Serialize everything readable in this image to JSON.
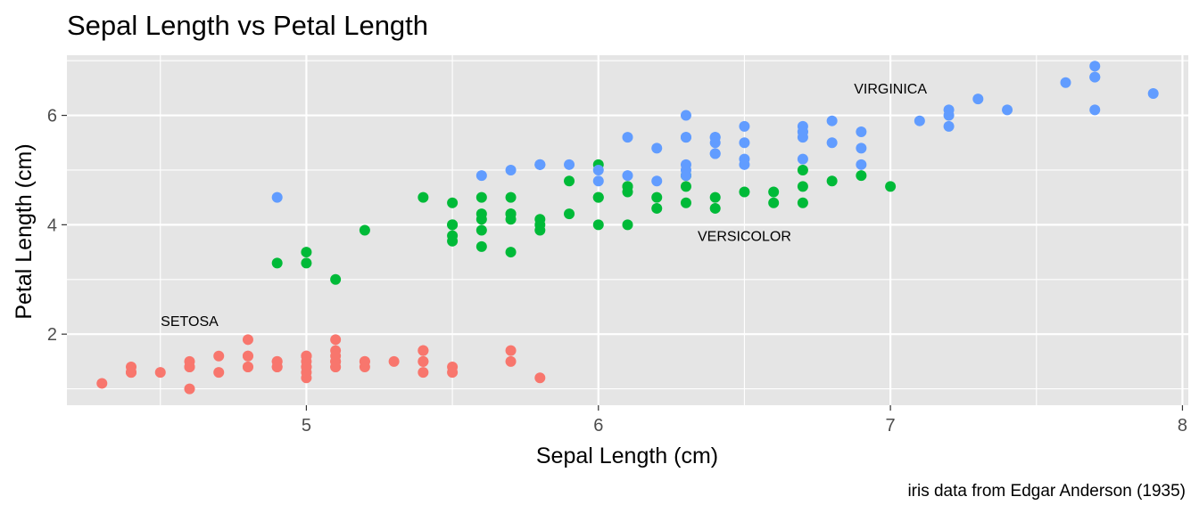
{
  "chart_data": {
    "type": "scatter",
    "title": "Sepal Length vs Petal Length",
    "xlabel": "Sepal Length (cm)",
    "ylabel": "Petal Length (cm)",
    "caption": "iris data from Edgar Anderson (1935)",
    "xlim": [
      4.18,
      8.02
    ],
    "ylim": [
      0.7,
      7.1
    ],
    "x_ticks": [
      5,
      6,
      7,
      8
    ],
    "x_tick_labels": [
      "5",
      "6",
      "7",
      "8"
    ],
    "y_ticks": [
      2,
      4,
      6
    ],
    "y_tick_labels": [
      "2",
      "4",
      "6"
    ],
    "x_minor": [
      4.5,
      5.5,
      6.5,
      7.5
    ],
    "y_minor": [
      1,
      3,
      5,
      7
    ],
    "grid": true,
    "legend": "none",
    "colors": {
      "panel_background": "#e5e5e5",
      "grid": "#ffffff"
    },
    "annotations": [
      {
        "label": "SETOSA",
        "x": 4.6,
        "y": 2.25
      },
      {
        "label": "VERSICOLOR",
        "x": 6.5,
        "y": 3.8
      },
      {
        "label": "VIRGINICA",
        "x": 7.0,
        "y": 6.5
      }
    ],
    "series": [
      {
        "color": "#f8766d",
        "points": [
          [
            5.1,
            1.4
          ],
          [
            4.9,
            1.4
          ],
          [
            4.7,
            1.3
          ],
          [
            4.6,
            1.5
          ],
          [
            5.0,
            1.4
          ],
          [
            5.4,
            1.7
          ],
          [
            4.6,
            1.4
          ],
          [
            5.0,
            1.5
          ],
          [
            4.4,
            1.4
          ],
          [
            4.9,
            1.5
          ],
          [
            5.4,
            1.5
          ],
          [
            4.8,
            1.6
          ],
          [
            4.8,
            1.4
          ],
          [
            4.3,
            1.1
          ],
          [
            5.8,
            1.2
          ],
          [
            5.7,
            1.5
          ],
          [
            5.4,
            1.3
          ],
          [
            5.1,
            1.4
          ],
          [
            5.7,
            1.7
          ],
          [
            5.1,
            1.5
          ],
          [
            5.4,
            1.7
          ],
          [
            5.1,
            1.5
          ],
          [
            4.6,
            1.0
          ],
          [
            5.1,
            1.7
          ],
          [
            4.8,
            1.9
          ],
          [
            5.0,
            1.6
          ],
          [
            5.0,
            1.6
          ],
          [
            5.2,
            1.5
          ],
          [
            5.2,
            1.4
          ],
          [
            4.7,
            1.6
          ],
          [
            4.8,
            1.6
          ],
          [
            5.4,
            1.5
          ],
          [
            5.2,
            1.5
          ],
          [
            5.5,
            1.4
          ],
          [
            4.9,
            1.5
          ],
          [
            5.0,
            1.2
          ],
          [
            5.5,
            1.3
          ],
          [
            4.9,
            1.4
          ],
          [
            4.4,
            1.3
          ],
          [
            5.1,
            1.5
          ],
          [
            5.0,
            1.3
          ],
          [
            4.5,
            1.3
          ],
          [
            4.4,
            1.3
          ],
          [
            5.0,
            1.6
          ],
          [
            5.1,
            1.9
          ],
          [
            4.8,
            1.4
          ],
          [
            5.1,
            1.6
          ],
          [
            4.6,
            1.4
          ],
          [
            5.3,
            1.5
          ],
          [
            5.0,
            1.4
          ]
        ]
      },
      {
        "color": "#00ba38",
        "points": [
          [
            7.0,
            4.7
          ],
          [
            6.4,
            4.5
          ],
          [
            6.9,
            4.9
          ],
          [
            5.5,
            4.0
          ],
          [
            6.5,
            4.6
          ],
          [
            5.7,
            4.5
          ],
          [
            6.3,
            4.7
          ],
          [
            4.9,
            3.3
          ],
          [
            6.6,
            4.6
          ],
          [
            5.2,
            3.9
          ],
          [
            5.0,
            3.5
          ],
          [
            5.9,
            4.2
          ],
          [
            6.0,
            4.0
          ],
          [
            6.1,
            4.7
          ],
          [
            5.6,
            3.6
          ],
          [
            6.7,
            4.4
          ],
          [
            5.6,
            4.5
          ],
          [
            5.8,
            4.1
          ],
          [
            6.2,
            4.5
          ],
          [
            5.6,
            3.9
          ],
          [
            5.9,
            4.8
          ],
          [
            6.1,
            4.0
          ],
          [
            6.3,
            4.9
          ],
          [
            6.1,
            4.7
          ],
          [
            6.4,
            4.3
          ],
          [
            6.6,
            4.4
          ],
          [
            6.8,
            4.8
          ],
          [
            6.7,
            5.0
          ],
          [
            6.0,
            4.5
          ],
          [
            5.7,
            3.5
          ],
          [
            5.5,
            3.8
          ],
          [
            5.5,
            3.7
          ],
          [
            5.8,
            3.9
          ],
          [
            6.0,
            5.1
          ],
          [
            5.4,
            4.5
          ],
          [
            6.0,
            4.5
          ],
          [
            6.7,
            4.7
          ],
          [
            6.3,
            4.4
          ],
          [
            5.6,
            4.1
          ],
          [
            5.5,
            4.0
          ],
          [
            5.5,
            4.4
          ],
          [
            6.1,
            4.6
          ],
          [
            5.8,
            4.0
          ],
          [
            5.0,
            3.3
          ],
          [
            5.6,
            4.2
          ],
          [
            5.7,
            4.2
          ],
          [
            5.7,
            4.2
          ],
          [
            6.2,
            4.3
          ],
          [
            5.1,
            3.0
          ],
          [
            5.7,
            4.1
          ]
        ]
      },
      {
        "color": "#619cff",
        "points": [
          [
            6.3,
            6.0
          ],
          [
            5.8,
            5.1
          ],
          [
            7.1,
            5.9
          ],
          [
            6.3,
            5.6
          ],
          [
            6.5,
            5.8
          ],
          [
            7.6,
            6.6
          ],
          [
            4.9,
            4.5
          ],
          [
            7.3,
            6.3
          ],
          [
            6.7,
            5.8
          ],
          [
            7.2,
            6.1
          ],
          [
            6.5,
            5.1
          ],
          [
            6.4,
            5.3
          ],
          [
            6.8,
            5.5
          ],
          [
            5.7,
            5.0
          ],
          [
            5.8,
            5.1
          ],
          [
            6.4,
            5.3
          ],
          [
            6.5,
            5.5
          ],
          [
            7.7,
            6.7
          ],
          [
            7.7,
            6.9
          ],
          [
            6.0,
            5.0
          ],
          [
            6.9,
            5.7
          ],
          [
            5.6,
            4.9
          ],
          [
            7.7,
            6.7
          ],
          [
            6.3,
            4.9
          ],
          [
            6.7,
            5.7
          ],
          [
            7.2,
            6.0
          ],
          [
            6.2,
            4.8
          ],
          [
            6.1,
            4.9
          ],
          [
            6.4,
            5.6
          ],
          [
            7.2,
            5.8
          ],
          [
            7.4,
            6.1
          ],
          [
            7.9,
            6.4
          ],
          [
            6.4,
            5.6
          ],
          [
            6.3,
            5.1
          ],
          [
            6.1,
            5.6
          ],
          [
            7.7,
            6.1
          ],
          [
            6.3,
            5.6
          ],
          [
            6.4,
            5.5
          ],
          [
            6.0,
            4.8
          ],
          [
            6.9,
            5.4
          ],
          [
            6.7,
            5.6
          ],
          [
            6.9,
            5.1
          ],
          [
            5.8,
            5.1
          ],
          [
            6.8,
            5.9
          ],
          [
            6.7,
            5.7
          ],
          [
            6.7,
            5.2
          ],
          [
            6.3,
            5.0
          ],
          [
            6.5,
            5.2
          ],
          [
            6.2,
            5.4
          ],
          [
            5.9,
            5.1
          ]
        ]
      }
    ]
  }
}
